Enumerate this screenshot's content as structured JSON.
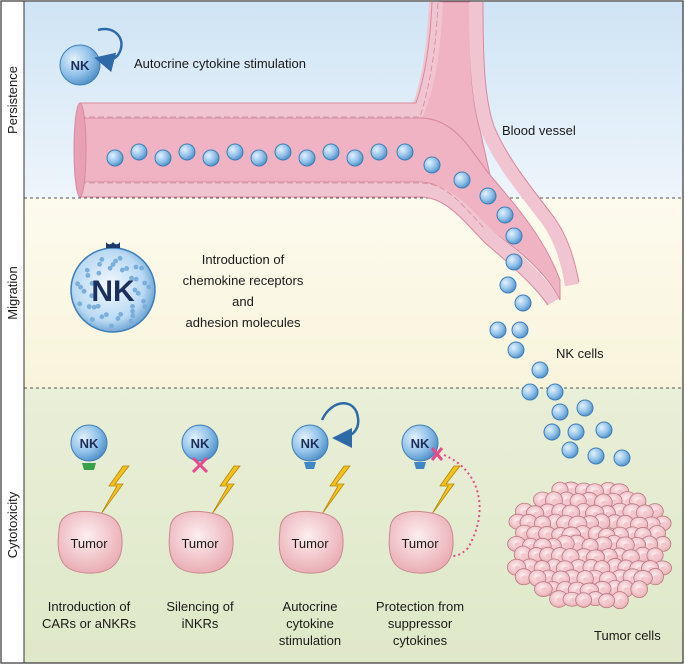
{
  "sections": {
    "persistence": "Persistence",
    "migration": "Migration",
    "cytotoxicity": "Cytotoxicity"
  },
  "labels": {
    "autocrine_top": "Autocrine cytokine stimulation",
    "blood_vessel": "Blood vessel",
    "nk_cells": "NK cells",
    "tumor_cells": "Tumor cells",
    "migration_line1": "Introduction of",
    "migration_line2": "chemokine receptors",
    "migration_line3": "and",
    "migration_line4": "adhesion molecules"
  },
  "nk_label": "NK",
  "tumor_label": "Tumor",
  "strategies": [
    {
      "line1": "Introduction of",
      "line2": "CARs or aNKRs",
      "line3": ""
    },
    {
      "line1": "Silencing of",
      "line2": "iNKRs",
      "line3": ""
    },
    {
      "line1": "Autocrine",
      "line2": "cytokine",
      "line3": "stimulation"
    },
    {
      "line1": "Protection from",
      "line2": "suppressor",
      "line3": "cytokines"
    }
  ],
  "colors": {
    "persistence_bg": "#dcebf7",
    "migration_bg": "#fbf8e6",
    "cytotoxicity_bg": "#e6edd3",
    "vessel": "#eeaec0",
    "vessel_wall": "#f4cbd6",
    "nk_cell": "#7fb3e0",
    "tumor": "#f6d6d8",
    "lightning": "#f2c21b",
    "inhibit_x": "#e64a8d",
    "arrow": "#2f6aa8"
  }
}
